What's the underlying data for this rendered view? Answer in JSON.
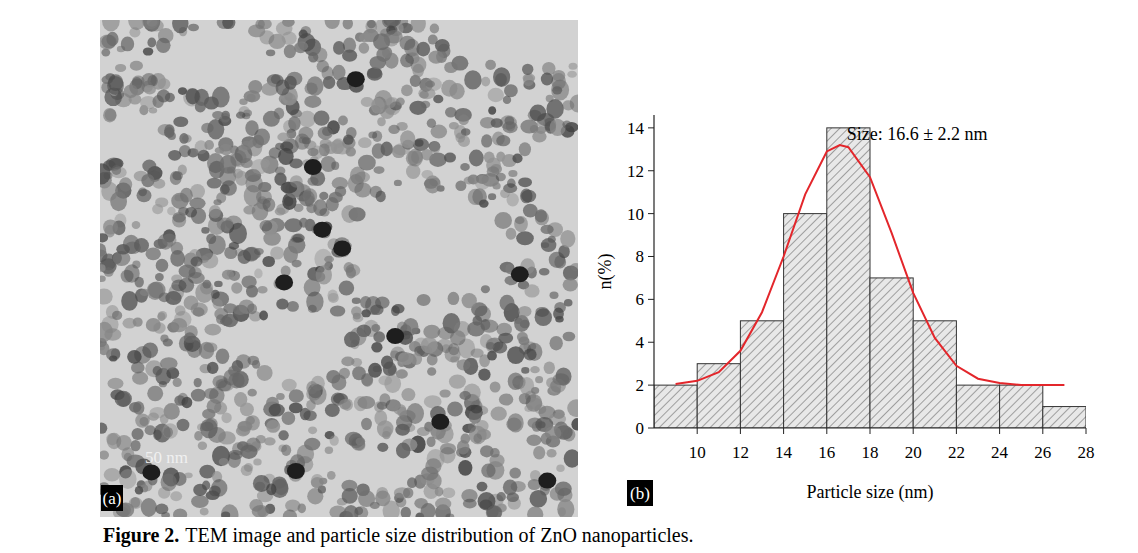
{
  "chart_data": {
    "type": "histogram",
    "bins": [
      8,
      10,
      12,
      14,
      16,
      18,
      20,
      22,
      24,
      26,
      28
    ],
    "values": [
      2,
      3,
      5,
      10,
      14,
      7,
      5,
      2,
      2,
      1
    ],
    "color": "#e8e8e8",
    "xlim": [
      8,
      28
    ],
    "xticks": [
      10,
      12,
      14,
      16,
      18,
      20,
      22,
      24,
      26,
      28
    ],
    "ylim": [
      0,
      14.6
    ],
    "yticks": [
      0,
      2,
      4,
      6,
      8,
      10,
      12,
      14
    ],
    "x_label": "Particle size (nm)",
    "y_label": "n(%)",
    "annotation": "Size: 16.6 ± 2.2 nm",
    "fit": {
      "type": "line",
      "color": "#e3262b",
      "x": [
        9,
        10,
        11,
        12,
        13,
        14,
        15,
        16,
        16.6,
        17,
        18,
        19,
        20,
        21,
        22,
        23,
        24,
        25,
        26,
        27
      ],
      "values": [
        2.05,
        2.2,
        2.6,
        3.6,
        5.4,
        8.0,
        10.9,
        12.9,
        13.2,
        13.1,
        11.7,
        9.1,
        6.3,
        4.2,
        2.9,
        2.3,
        2.1,
        2.0,
        2.0,
        2.0
      ]
    },
    "grid": false
  },
  "figure": {
    "image_label": "(a)",
    "scale_bar": "50 nm",
    "chart_label": "(b)",
    "caption_label": "Figure 2.",
    "caption_text": "TEM image and particle size distribution of ZnO nanoparticles."
  }
}
